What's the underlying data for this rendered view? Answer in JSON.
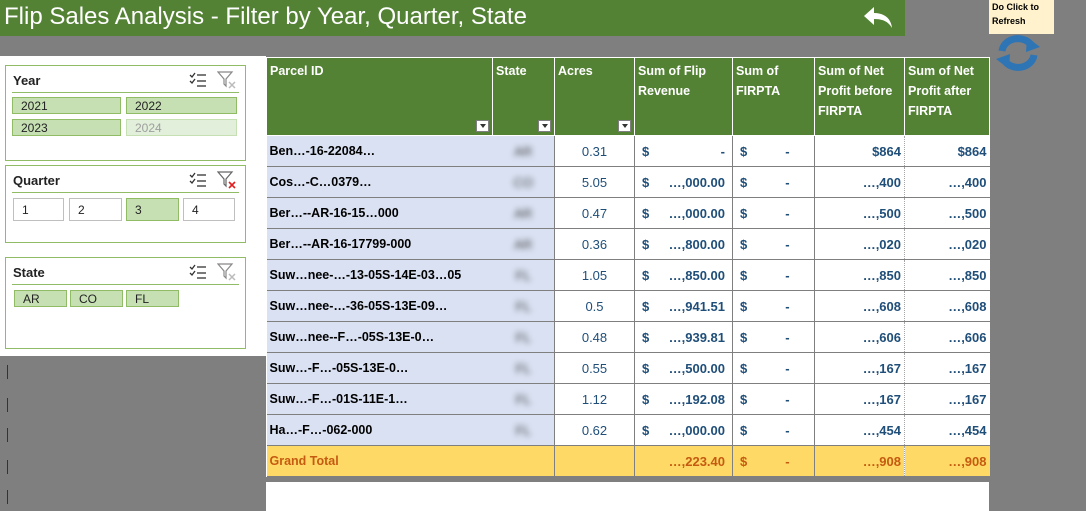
{
  "header": {
    "title": "Flip Sales Analysis - Filter by Year, Quarter, State"
  },
  "refresh": {
    "note": "Do Click to Refresh"
  },
  "slicers": {
    "year": {
      "title": "Year",
      "items": [
        "2021",
        "2022",
        "2023",
        "2024"
      ]
    },
    "quarter": {
      "title": "Quarter",
      "items": [
        "1",
        "2",
        "3",
        "4"
      ]
    },
    "state": {
      "title": "State",
      "items": [
        "AR",
        "CO",
        "FL"
      ]
    }
  },
  "table": {
    "headers": {
      "parcel": "Parcel ID",
      "state": "State",
      "acres": "Acres",
      "revenue": "Sum of Flip Revenue",
      "firpta": "Sum of FIRPTA",
      "np_before": "Sum of Net Profit before FIRPTA",
      "np_after": "Sum of Net Profit after FIRPTA"
    },
    "rows": [
      {
        "parcel": "Ben…-16-22084…",
        "state": "AR",
        "acres": "0.31",
        "rev_dollar": "$",
        "rev_amt": "-",
        "firpta_dollar": "$",
        "firpta_amt": "-",
        "np_before": "$864",
        "np_after": "$864"
      },
      {
        "parcel": "Cos…-C…0379…",
        "state": "CO",
        "acres": "5.05",
        "rev_dollar": "$",
        "rev_amt": "…,000.00",
        "firpta_dollar": "$",
        "firpta_amt": "-",
        "np_before": "…,400",
        "np_after": "…,400"
      },
      {
        "parcel": "Ber…--AR-16-15…000",
        "state": "AR",
        "acres": "0.47",
        "rev_dollar": "$",
        "rev_amt": "…,000.00",
        "firpta_dollar": "$",
        "firpta_amt": "-",
        "np_before": "…,500",
        "np_after": "…,500"
      },
      {
        "parcel": "Ber…--AR-16-17799-000",
        "state": "AR",
        "acres": "0.36",
        "rev_dollar": "$",
        "rev_amt": "…,800.00",
        "firpta_dollar": "$",
        "firpta_amt": "-",
        "np_before": "…,020",
        "np_after": "…,020"
      },
      {
        "parcel": "Suw…nee-…-13-05S-14E-03…05",
        "state": "FL",
        "acres": "1.05",
        "rev_dollar": "$",
        "rev_amt": "…,850.00",
        "firpta_dollar": "$",
        "firpta_amt": "-",
        "np_before": "…,850",
        "np_after": "…,850"
      },
      {
        "parcel": "Suw…nee-…-36-05S-13E-09…",
        "state": "FL",
        "acres": "0.5",
        "rev_dollar": "$",
        "rev_amt": "…,941.51",
        "firpta_dollar": "$",
        "firpta_amt": "-",
        "np_before": "…,608",
        "np_after": "…,608"
      },
      {
        "parcel": "Suw…nee--F…-05S-13E-0…",
        "state": "FL",
        "acres": "0.48",
        "rev_dollar": "$",
        "rev_amt": "…,939.81",
        "firpta_dollar": "$",
        "firpta_amt": "-",
        "np_before": "…,606",
        "np_after": "…,606"
      },
      {
        "parcel": "Suw…-F…-05S-13E-0…",
        "state": "FL",
        "acres": "0.55",
        "rev_dollar": "$",
        "rev_amt": "…,500.00",
        "firpta_dollar": "$",
        "firpta_amt": "-",
        "np_before": "…,167",
        "np_after": "…,167"
      },
      {
        "parcel": "Suw…-F…-01S-11E-1…",
        "state": "FL",
        "acres": "1.12",
        "rev_dollar": "$",
        "rev_amt": "…,192.08",
        "firpta_dollar": "$",
        "firpta_amt": "-",
        "np_before": "…,167",
        "np_after": "…,167"
      },
      {
        "parcel": "Ha…-F…-062-000",
        "state": "FL",
        "acres": "0.62",
        "rev_dollar": "$",
        "rev_amt": "…,000.00",
        "firpta_dollar": "$",
        "firpta_amt": "-",
        "np_before": "…,454",
        "np_after": "…,454"
      }
    ],
    "grand_total": {
      "label": "Grand Total",
      "rev_dollar": "",
      "rev_amt": "…,223.40",
      "firpta_dollar": "$",
      "firpta_amt": "-",
      "np_before": "…,908",
      "np_after": "…,908"
    }
  }
}
